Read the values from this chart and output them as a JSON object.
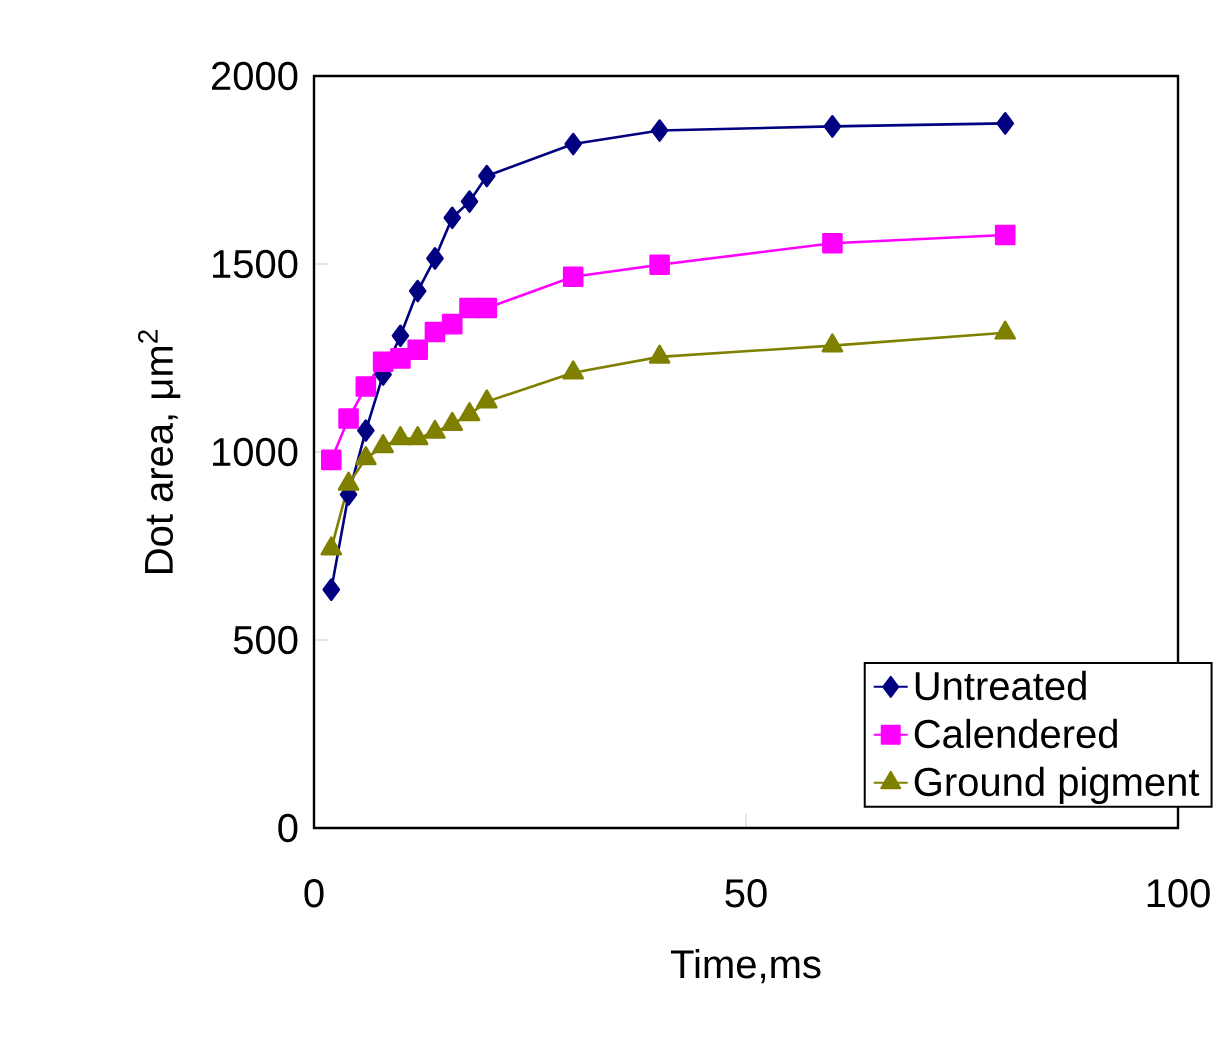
{
  "chart_data": {
    "type": "line",
    "xlabel": "Time,ms",
    "ylabel": "Dot area, μm$^{2}$",
    "x": [
      2,
      4,
      6,
      8,
      10,
      12,
      14,
      16,
      18,
      20,
      30,
      40,
      60,
      80
    ],
    "series": [
      {
        "name": "Untreated",
        "color": "#000080",
        "marker": "diamond",
        "values": [
          634,
          887,
          1057,
          1206,
          1309,
          1428,
          1515,
          1623,
          1666,
          1734,
          1819,
          1855,
          1866,
          1874
        ]
      },
      {
        "name": "Calendered",
        "color": "#ff00ff",
        "marker": "square",
        "values": [
          979,
          1089,
          1174,
          1240,
          1249,
          1272,
          1319,
          1340,
          1383,
          1383,
          1466,
          1498,
          1555,
          1577
        ]
      },
      {
        "name": "Ground pigment",
        "color": "#808000",
        "marker": "triangle",
        "values": [
          743,
          915,
          983,
          1015,
          1036,
          1036,
          1053,
          1074,
          1100,
          1134,
          1211,
          1253,
          1283,
          1317
        ]
      }
    ],
    "xlim": [
      0,
      100
    ],
    "ylim": [
      0,
      2000
    ],
    "xticks": [
      0,
      50,
      100
    ],
    "yticks": [
      0,
      500,
      1000,
      1500,
      2000
    ],
    "legend": "bottom right",
    "grid": false,
    "line_style": "solid"
  }
}
